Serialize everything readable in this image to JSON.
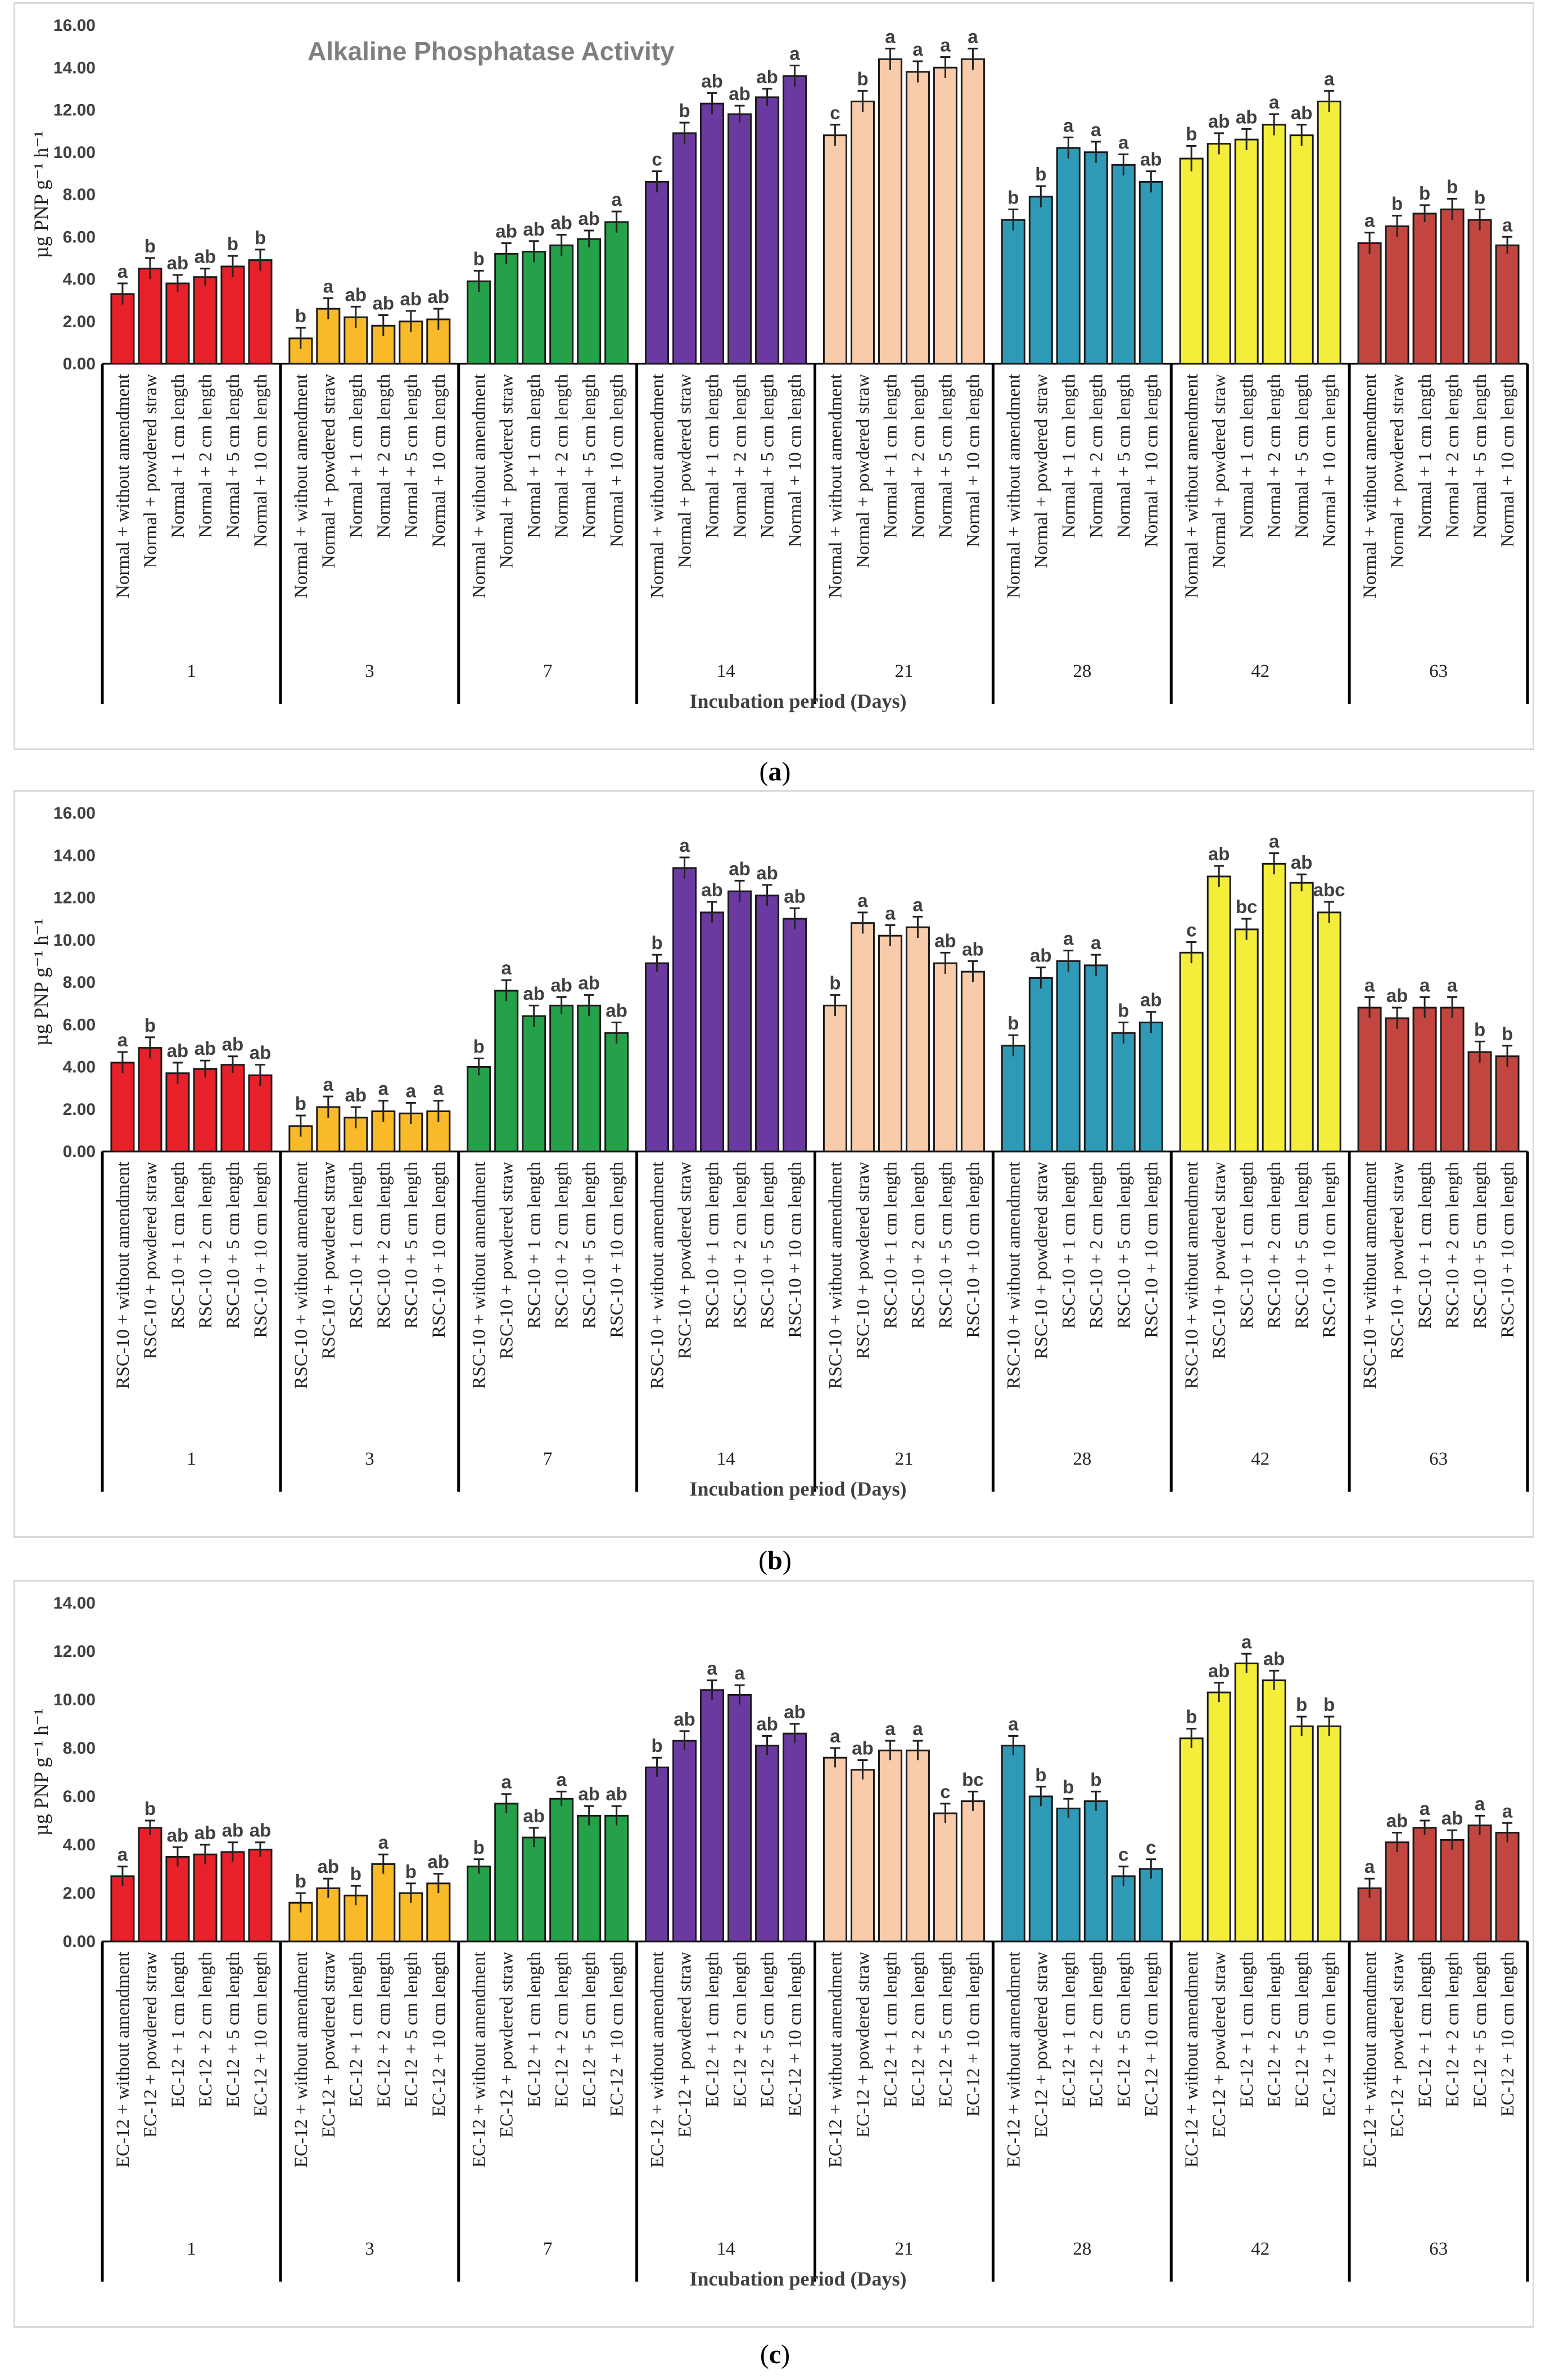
{
  "colors": [
    "#e8202a",
    "#f9ba2a",
    "#25a149",
    "#6b3aa0",
    "#f8ccaa",
    "#2f9ab5",
    "#f4ee3a",
    "#c2463f"
  ],
  "captions": [
    {
      "open": "(",
      "letter": "a",
      "close": ")"
    },
    {
      "open": "(",
      "letter": "b",
      "close": ")"
    },
    {
      "open": "(",
      "letter": "c",
      "close": ")"
    }
  ],
  "chart_data": [
    {
      "type": "bar",
      "title": "Alkaline Phosphatase Activity",
      "ylabel": "µg PNP g⁻¹ h⁻¹",
      "xlabel": "Incubation period (Days)",
      "ylim": [
        0,
        16
      ],
      "yticks": [
        "0.00",
        "2.00",
        "4.00",
        "6.00",
        "8.00",
        "10.00",
        "12.00",
        "14.00",
        "16.00"
      ],
      "days": [
        "1",
        "3",
        "7",
        "14",
        "21",
        "28",
        "42",
        "63"
      ],
      "categories": [
        "Normal + without amendment",
        "Normal + powdered straw",
        "Normal + 1 cm length",
        "Normal + 2 cm length",
        "Normal + 5 cm length",
        "Normal + 10 cm length"
      ],
      "values": [
        [
          3.3,
          4.5,
          3.8,
          4.1,
          4.6,
          4.9
        ],
        [
          1.2,
          2.6,
          2.2,
          1.8,
          2.0,
          2.1
        ],
        [
          3.9,
          5.2,
          5.3,
          5.6,
          5.9,
          6.7
        ],
        [
          8.6,
          10.9,
          12.3,
          11.8,
          12.6,
          13.6
        ],
        [
          10.8,
          12.4,
          14.4,
          13.8,
          14.0,
          14.4
        ],
        [
          6.8,
          7.9,
          10.2,
          10.0,
          9.4,
          8.6
        ],
        [
          9.7,
          10.4,
          10.6,
          11.3,
          10.8,
          12.4
        ],
        [
          5.7,
          6.5,
          7.1,
          7.3,
          6.8,
          5.6
        ]
      ],
      "errors": [
        [
          0.5,
          0.5,
          0.4,
          0.4,
          0.5,
          0.5
        ],
        [
          0.5,
          0.5,
          0.5,
          0.5,
          0.5,
          0.5
        ],
        [
          0.5,
          0.5,
          0.5,
          0.5,
          0.4,
          0.5
        ],
        [
          0.5,
          0.5,
          0.5,
          0.4,
          0.4,
          0.5
        ],
        [
          0.5,
          0.5,
          0.5,
          0.5,
          0.5,
          0.5
        ],
        [
          0.5,
          0.5,
          0.5,
          0.5,
          0.5,
          0.5
        ],
        [
          0.6,
          0.5,
          0.5,
          0.5,
          0.5,
          0.5
        ],
        [
          0.5,
          0.5,
          0.4,
          0.5,
          0.5,
          0.4
        ]
      ],
      "letters": [
        [
          "a",
          "b",
          "ab",
          "ab",
          "b",
          "b"
        ],
        [
          "b",
          "a",
          "ab",
          "ab",
          "ab",
          "ab"
        ],
        [
          "b",
          "ab",
          "ab",
          "ab",
          "ab",
          "a"
        ],
        [
          "c",
          "b",
          "ab",
          "ab",
          "ab",
          "a"
        ],
        [
          "c",
          "b",
          "a",
          "a",
          "a",
          "a"
        ],
        [
          "b",
          "b",
          "a",
          "a",
          "a",
          "ab"
        ],
        [
          "b",
          "ab",
          "ab",
          "a",
          "ab",
          "a"
        ],
        [
          "a",
          "b",
          "b",
          "b",
          "b",
          "a"
        ]
      ]
    },
    {
      "type": "bar",
      "title": "",
      "ylabel": "µg PNP g⁻¹ h⁻¹",
      "xlabel": "Incubation period (Days)",
      "ylim": [
        0,
        16
      ],
      "yticks": [
        "0.00",
        "2.00",
        "4.00",
        "6.00",
        "8.00",
        "10.00",
        "12.00",
        "14.00",
        "16.00"
      ],
      "days": [
        "1",
        "3",
        "7",
        "14",
        "21",
        "28",
        "42",
        "63"
      ],
      "categories": [
        "RSC-10 + without amendment",
        "RSC-10 + powdered straw",
        "RSC-10 + 1 cm length",
        "RSC-10 + 2 cm length",
        "RSC-10 + 5 cm length",
        "RSC-10 + 10 cm length"
      ],
      "values": [
        [
          4.2,
          4.9,
          3.7,
          3.9,
          4.1,
          3.6
        ],
        [
          1.2,
          2.1,
          1.6,
          1.9,
          1.8,
          1.9
        ],
        [
          4.0,
          7.6,
          6.4,
          6.9,
          6.9,
          5.6
        ],
        [
          8.9,
          13.4,
          11.3,
          12.3,
          12.1,
          11.0
        ],
        [
          6.9,
          10.8,
          10.2,
          10.6,
          8.9,
          8.5
        ],
        [
          5.0,
          8.2,
          9.0,
          8.8,
          5.6,
          6.1
        ],
        [
          9.4,
          13.0,
          10.5,
          13.6,
          12.7,
          11.3
        ],
        [
          6.8,
          6.3,
          6.8,
          6.8,
          4.7,
          4.5
        ]
      ],
      "errors": [
        [
          0.5,
          0.5,
          0.5,
          0.4,
          0.4,
          0.5
        ],
        [
          0.5,
          0.5,
          0.5,
          0.5,
          0.5,
          0.5
        ],
        [
          0.4,
          0.5,
          0.5,
          0.4,
          0.5,
          0.5
        ],
        [
          0.4,
          0.5,
          0.5,
          0.5,
          0.5,
          0.5
        ],
        [
          0.5,
          0.5,
          0.5,
          0.5,
          0.5,
          0.5
        ],
        [
          0.5,
          0.5,
          0.5,
          0.5,
          0.5,
          0.5
        ],
        [
          0.5,
          0.5,
          0.5,
          0.5,
          0.4,
          0.5
        ],
        [
          0.5,
          0.5,
          0.5,
          0.5,
          0.5,
          0.5
        ]
      ],
      "letters": [
        [
          "a",
          "b",
          "ab",
          "ab",
          "ab",
          "ab"
        ],
        [
          "b",
          "a",
          "ab",
          "a",
          "a",
          "a"
        ],
        [
          "b",
          "a",
          "ab",
          "ab",
          "ab",
          "ab"
        ],
        [
          "b",
          "a",
          "ab",
          "ab",
          "ab",
          "ab"
        ],
        [
          "b",
          "a",
          "a",
          "a",
          "ab",
          "ab"
        ],
        [
          "b",
          "ab",
          "a",
          "a",
          "b",
          "ab"
        ],
        [
          "c",
          "ab",
          "bc",
          "a",
          "ab",
          "abc"
        ],
        [
          "a",
          "ab",
          "a",
          "a",
          "b",
          "b"
        ]
      ]
    },
    {
      "type": "bar",
      "title": "",
      "ylabel": "µg PNP g⁻¹ h⁻¹",
      "xlabel": "Incubation period (Days)",
      "ylim": [
        0,
        14
      ],
      "yticks": [
        "0.00",
        "2.00",
        "4.00",
        "6.00",
        "8.00",
        "10.00",
        "12.00",
        "14.00"
      ],
      "days": [
        "1",
        "3",
        "7",
        "14",
        "21",
        "28",
        "42",
        "63"
      ],
      "categories": [
        "EC-12 + without amendment",
        "EC-12 + powdered straw",
        "EC-12 + 1 cm length",
        "EC-12 + 2 cm length",
        "EC-12 + 5 cm length",
        "EC-12 + 10 cm length"
      ],
      "values": [
        [
          2.7,
          4.7,
          3.5,
          3.6,
          3.7,
          3.8
        ],
        [
          1.6,
          2.2,
          1.9,
          3.2,
          2.0,
          2.4
        ],
        [
          3.1,
          5.7,
          4.3,
          5.9,
          5.2,
          5.2
        ],
        [
          7.2,
          8.3,
          10.4,
          10.2,
          8.1,
          8.6
        ],
        [
          7.6,
          7.1,
          7.9,
          7.9,
          5.3,
          5.8
        ],
        [
          8.1,
          6.0,
          5.5,
          5.8,
          2.7,
          3.0
        ],
        [
          8.4,
          10.3,
          11.5,
          10.8,
          8.9,
          8.9
        ],
        [
          2.2,
          4.1,
          4.7,
          4.2,
          4.8,
          4.5
        ]
      ],
      "errors": [
        [
          0.4,
          0.3,
          0.4,
          0.4,
          0.4,
          0.3
        ],
        [
          0.4,
          0.4,
          0.4,
          0.4,
          0.4,
          0.4
        ],
        [
          0.3,
          0.4,
          0.4,
          0.3,
          0.4,
          0.4
        ],
        [
          0.4,
          0.4,
          0.4,
          0.4,
          0.4,
          0.4
        ],
        [
          0.4,
          0.4,
          0.4,
          0.4,
          0.4,
          0.4
        ],
        [
          0.4,
          0.4,
          0.4,
          0.4,
          0.4,
          0.4
        ],
        [
          0.4,
          0.4,
          0.4,
          0.4,
          0.4,
          0.4
        ],
        [
          0.4,
          0.4,
          0.3,
          0.4,
          0.4,
          0.4
        ]
      ],
      "letters": [
        [
          "a",
          "b",
          "ab",
          "ab",
          "ab",
          "ab"
        ],
        [
          "b",
          "ab",
          "b",
          "a",
          "b",
          "ab"
        ],
        [
          "b",
          "a",
          "ab",
          "a",
          "ab",
          "ab"
        ],
        [
          "b",
          "ab",
          "a",
          "a",
          "ab",
          "ab"
        ],
        [
          "a",
          "ab",
          "a",
          "a",
          "c",
          "bc"
        ],
        [
          "a",
          "b",
          "b",
          "b",
          "c",
          "c"
        ],
        [
          "b",
          "ab",
          "a",
          "ab",
          "b",
          "b"
        ],
        [
          "a",
          "ab",
          "a",
          "ab",
          "a",
          "a"
        ]
      ]
    }
  ]
}
